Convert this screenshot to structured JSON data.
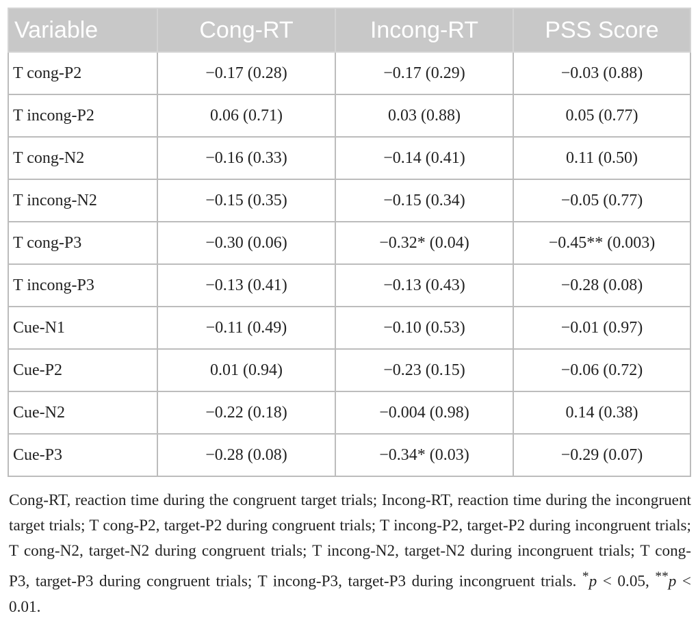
{
  "table": {
    "headers": [
      "Variable",
      "Cong-RT",
      "Incong-RT",
      "PSS Score"
    ],
    "rows": [
      [
        "T cong-P2",
        "−0.17 (0.28)",
        "−0.17 (0.29)",
        "−0.03 (0.88)"
      ],
      [
        "T incong-P2",
        "0.06 (0.71)",
        "0.03 (0.88)",
        "0.05 (0.77)"
      ],
      [
        "T cong-N2",
        "−0.16 (0.33)",
        "−0.14 (0.41)",
        "0.11 (0.50)"
      ],
      [
        "T incong-N2",
        "−0.15 (0.35)",
        "−0.15 (0.34)",
        "−0.05 (0.77)"
      ],
      [
        "T cong-P3",
        "−0.30 (0.06)",
        "−0.32* (0.04)",
        "−0.45** (0.003)"
      ],
      [
        "T incong-P3",
        "−0.13 (0.41)",
        "−0.13 (0.43)",
        "−0.28 (0.08)"
      ],
      [
        "Cue-N1",
        "−0.11 (0.49)",
        "−0.10 (0.53)",
        "−0.01 (0.97)"
      ],
      [
        "Cue-P2",
        "0.01 (0.94)",
        "−0.23 (0.15)",
        "−0.06 (0.72)"
      ],
      [
        "Cue-N2",
        "−0.22 (0.18)",
        "−0.004 (0.98)",
        "0.14 (0.38)"
      ],
      [
        "Cue-P3",
        "−0.28 (0.08)",
        "−0.34* (0.03)",
        "−0.29 (0.07)"
      ]
    ]
  },
  "footnote": {
    "text": "Cong-RT, reaction time during the congruent target trials; Incong-RT, reaction time during the incongruent target trials; T cong-P2, target-P2 during congruent trials; T incong-P2, target-P2 during incongruent trials; T cong-N2, target-N2 during congruent trials; T incong-N2, target-N2 during incongruent trials; T cong-P3, target-P3 during congruent trials; T incong-P3, target-P3 during incongruent trials.",
    "sig1_marker": "*",
    "sig1_p": "p",
    "sig1_rest": " < 0.05, ",
    "sig2_marker": "**",
    "sig2_p": "p",
    "sig2_rest": " < 0.01."
  },
  "colors": {
    "header_bg": "#c8c8c8",
    "header_text": "#ffffff",
    "border": "#bcbcbc",
    "body_text": "#222222"
  }
}
